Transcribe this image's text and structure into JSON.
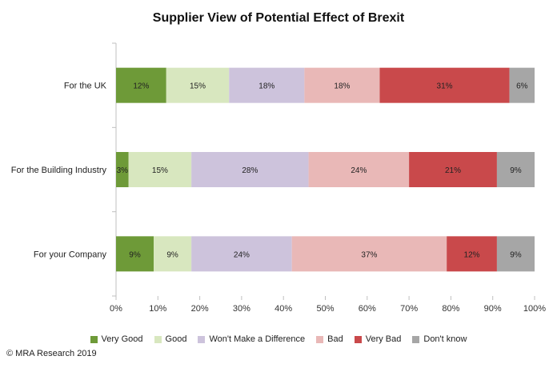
{
  "chart_data": {
    "type": "bar",
    "orientation": "horizontal",
    "stacked": "100%",
    "title": "Supplier View of Potential Effect of Brexit",
    "categories": [
      "For the UK",
      "For the Building Industry",
      "For your Company"
    ],
    "series": [
      {
        "name": "Very Good",
        "color": "#6e9a38",
        "values": [
          12,
          3,
          9
        ]
      },
      {
        "name": "Good",
        "color": "#d8e7bf",
        "values": [
          15,
          15,
          9
        ]
      },
      {
        "name": "Won't Make a Difference",
        "color": "#cdc3dc",
        "values": [
          18,
          28,
          24
        ]
      },
      {
        "name": "Bad",
        "color": "#e9b8b7",
        "values": [
          18,
          24,
          37
        ]
      },
      {
        "name": "Very Bad",
        "color": "#c9494b",
        "values": [
          31,
          21,
          12
        ]
      },
      {
        "name": "Don't know",
        "color": "#a6a6a6",
        "values": [
          6,
          9,
          9
        ]
      }
    ],
    "xlim": [
      0,
      100
    ],
    "xticks": [
      "0%",
      "10%",
      "20%",
      "30%",
      "40%",
      "50%",
      "60%",
      "70%",
      "80%",
      "90%",
      "100%"
    ],
    "xlabel": "",
    "ylabel": "",
    "legend": "bottom"
  },
  "footer": {
    "credit": "© MRA Research 2019"
  }
}
